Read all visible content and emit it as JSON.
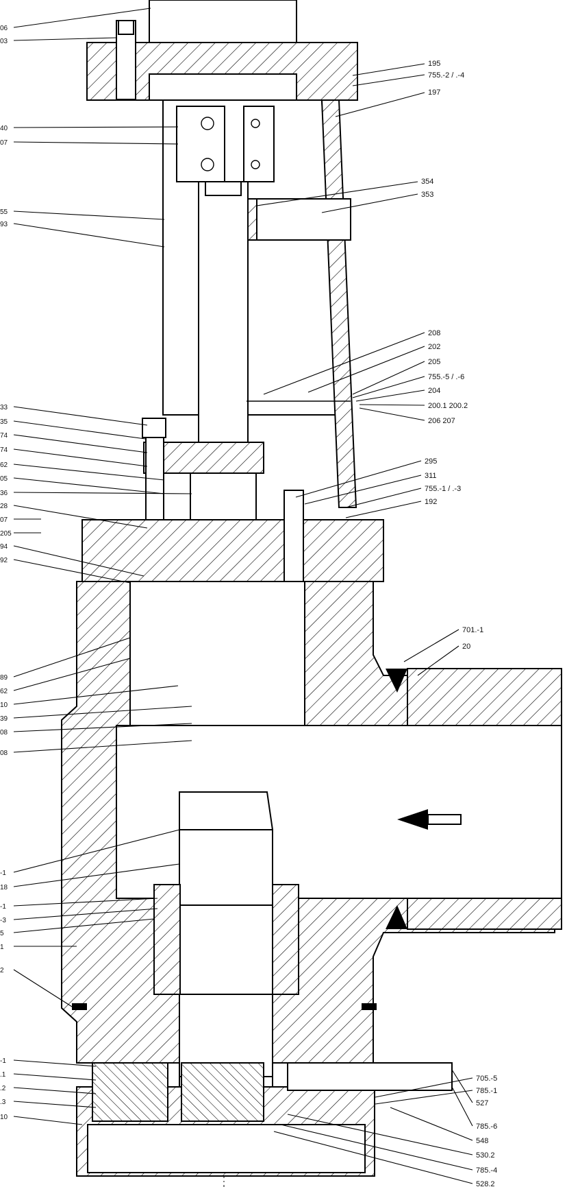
{
  "labels_right": [
    {
      "id": "r195",
      "text": "195"
    },
    {
      "id": "r755_2",
      "text": "755.-2 / .-4"
    },
    {
      "id": "r197",
      "text": "197"
    },
    {
      "id": "r354",
      "text": "354"
    },
    {
      "id": "r353",
      "text": "353"
    },
    {
      "id": "r208",
      "text": "208"
    },
    {
      "id": "r202",
      "text": "202"
    },
    {
      "id": "r205",
      "text": "205"
    },
    {
      "id": "r755_5",
      "text": "755.-5 / .-6"
    },
    {
      "id": "r204",
      "text": "204"
    },
    {
      "id": "r200",
      "text": "200.1 200.2"
    },
    {
      "id": "r206",
      "text": "206 207"
    },
    {
      "id": "r295",
      "text": "295"
    },
    {
      "id": "r311",
      "text": "311"
    },
    {
      "id": "r755_1",
      "text": "755.-1 / .-3"
    },
    {
      "id": "r192",
      "text": "192"
    },
    {
      "id": "r701",
      "text": "701.-1"
    },
    {
      "id": "r20",
      "text": "20"
    },
    {
      "id": "r705",
      "text": "705.-5"
    },
    {
      "id": "r785_1",
      "text": "785.-1"
    },
    {
      "id": "r527",
      "text": "527"
    },
    {
      "id": "r785_6",
      "text": "785.-6"
    },
    {
      "id": "r548",
      "text": "548"
    },
    {
      "id": "r530",
      "text": "530.2"
    },
    {
      "id": "r785_4",
      "text": "785.-4"
    },
    {
      "id": "r528",
      "text": "528.2"
    }
  ],
  "labels_left": [
    {
      "id": "l_top1",
      "text": "06"
    },
    {
      "id": "l_top2",
      "text": "03"
    },
    {
      "id": "l_40",
      "text": "40"
    },
    {
      "id": "l_07",
      "text": "07"
    },
    {
      "id": "l_55",
      "text": "55"
    },
    {
      "id": "l_93",
      "text": "93"
    },
    {
      "id": "l_33",
      "text": "33"
    },
    {
      "id": "l_35",
      "text": "35"
    },
    {
      "id": "l_74a",
      "text": "74"
    },
    {
      "id": "l_74b",
      "text": "74"
    },
    {
      "id": "l_62",
      "text": "62"
    },
    {
      "id": "l_05",
      "text": "05"
    },
    {
      "id": "l_36",
      "text": "36"
    },
    {
      "id": "l_28",
      "text": "28"
    },
    {
      "id": "l_07b",
      "text": "07"
    },
    {
      "id": "l_205",
      "text": "205"
    },
    {
      "id": "l_94",
      "text": "94"
    },
    {
      "id": "l_92",
      "text": "92"
    },
    {
      "id": "l_89",
      "text": "89"
    },
    {
      "id": "l_62b",
      "text": "62"
    },
    {
      "id": "l_10",
      "text": "10"
    },
    {
      "id": "l_39",
      "text": "39"
    },
    {
      "id": "l_08",
      "text": "08"
    },
    {
      "id": "l_08b",
      "text": "08"
    },
    {
      "id": "l_x1",
      "text": "-1"
    },
    {
      "id": "l_18",
      "text": "18"
    },
    {
      "id": "l_x2",
      "text": "-1"
    },
    {
      "id": "l_x3",
      "text": "-3"
    },
    {
      "id": "l_x4",
      "text": "5"
    },
    {
      "id": "l_x5",
      "text": "1"
    },
    {
      "id": "l_x6",
      "text": "2"
    },
    {
      "id": "l_x7",
      "text": "-1"
    },
    {
      "id": "l_x8",
      "text": ".1"
    },
    {
      "id": "l_x9",
      "text": ".2"
    },
    {
      "id": "l_x10",
      "text": ".3"
    },
    {
      "id": "l_x11",
      "text": "10"
    }
  ]
}
